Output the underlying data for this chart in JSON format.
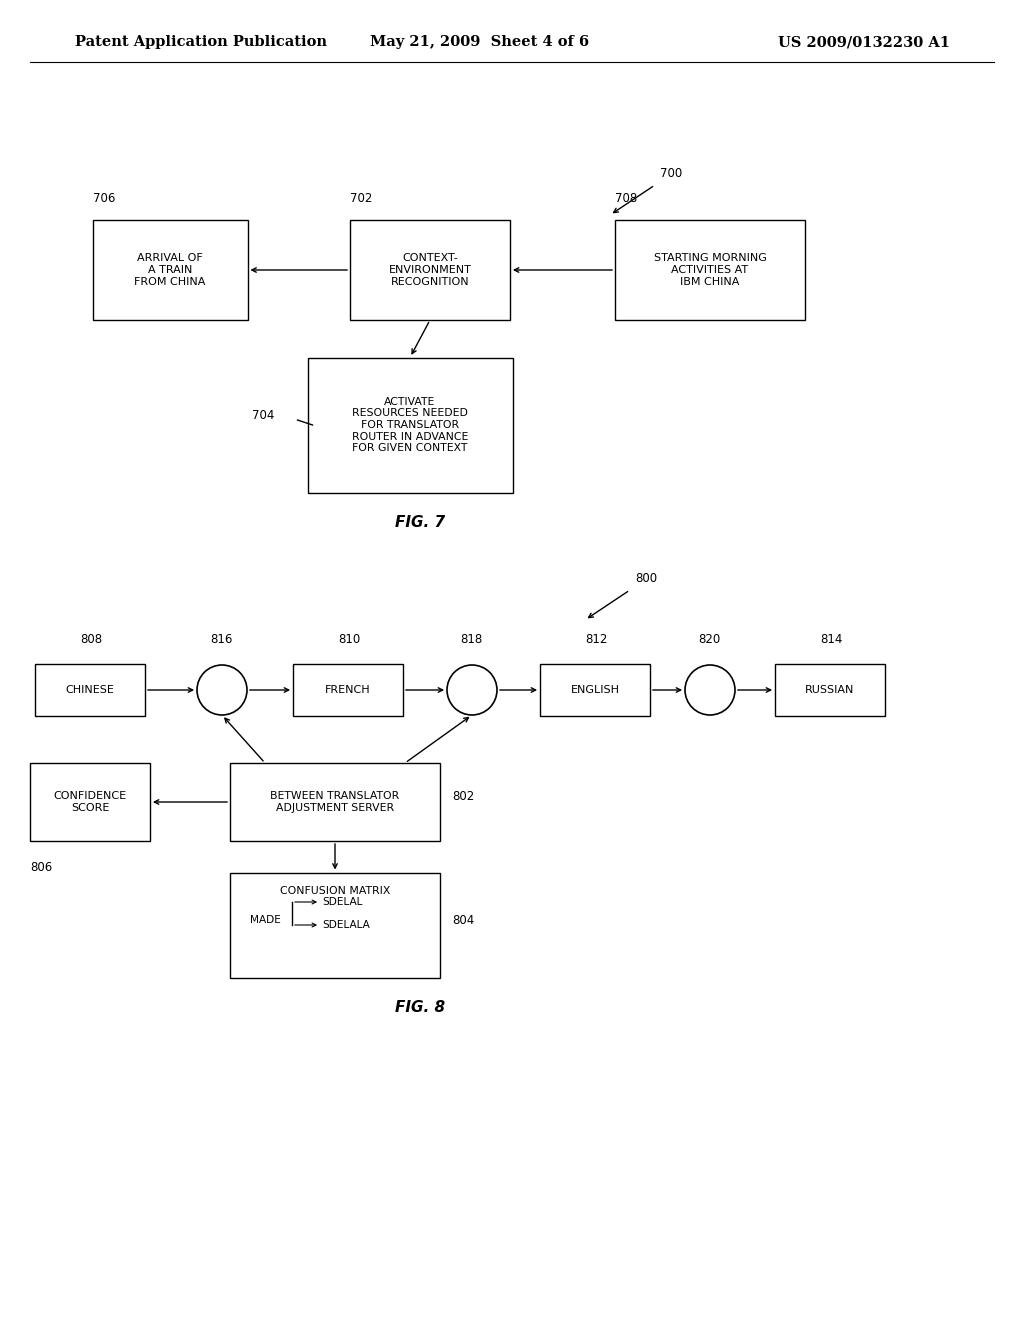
{
  "background_color": "#ffffff",
  "header_left": "Patent Application Publication",
  "header_center": "May 21, 2009  Sheet 4 of 6",
  "header_right": "US 2009/0132230 A1",
  "header_fontsize": 10.5,
  "fig7_label": "FIG. 7",
  "fig8_label": "FIG. 8",
  "ref700": "700",
  "ref800": "800",
  "box706": "ARRIVAL OF\nA TRAIN\nFROM CHINA",
  "box702": "CONTEXT-\nENVIRONMENT\nRECOGNITION",
  "box708": "STARTING MORNING\nACTIVITIES AT\nIBM CHINA",
  "box704": "ACTIVATE\nRESOURCES NEEDED\nFOR TRANSLATOR\nROUTER IN ADVANCE\nFOR GIVEN CONTEXT",
  "box808": "CHINESE",
  "box810": "FRENCH",
  "box812": "ENGLISH",
  "box814": "RUSSIAN",
  "box806": "CONFIDENCE\nSCORE",
  "box802": "BETWEEN TRANSLATOR\nADJUSTMENT SERVER",
  "lbl706": "706",
  "lbl702": "702",
  "lbl708": "708",
  "lbl704": "704",
  "lbl808": "808",
  "lbl816": "816",
  "lbl810": "810",
  "lbl818": "818",
  "lbl812": "812",
  "lbl820": "820",
  "lbl814": "814",
  "lbl806": "806",
  "lbl802": "802",
  "lbl804": "804",
  "cm_title": "CONFUSION MATRIX",
  "cm_made": "MADE",
  "cm_sdelal": "SDELAL",
  "cm_sdelala": "SDELALA"
}
